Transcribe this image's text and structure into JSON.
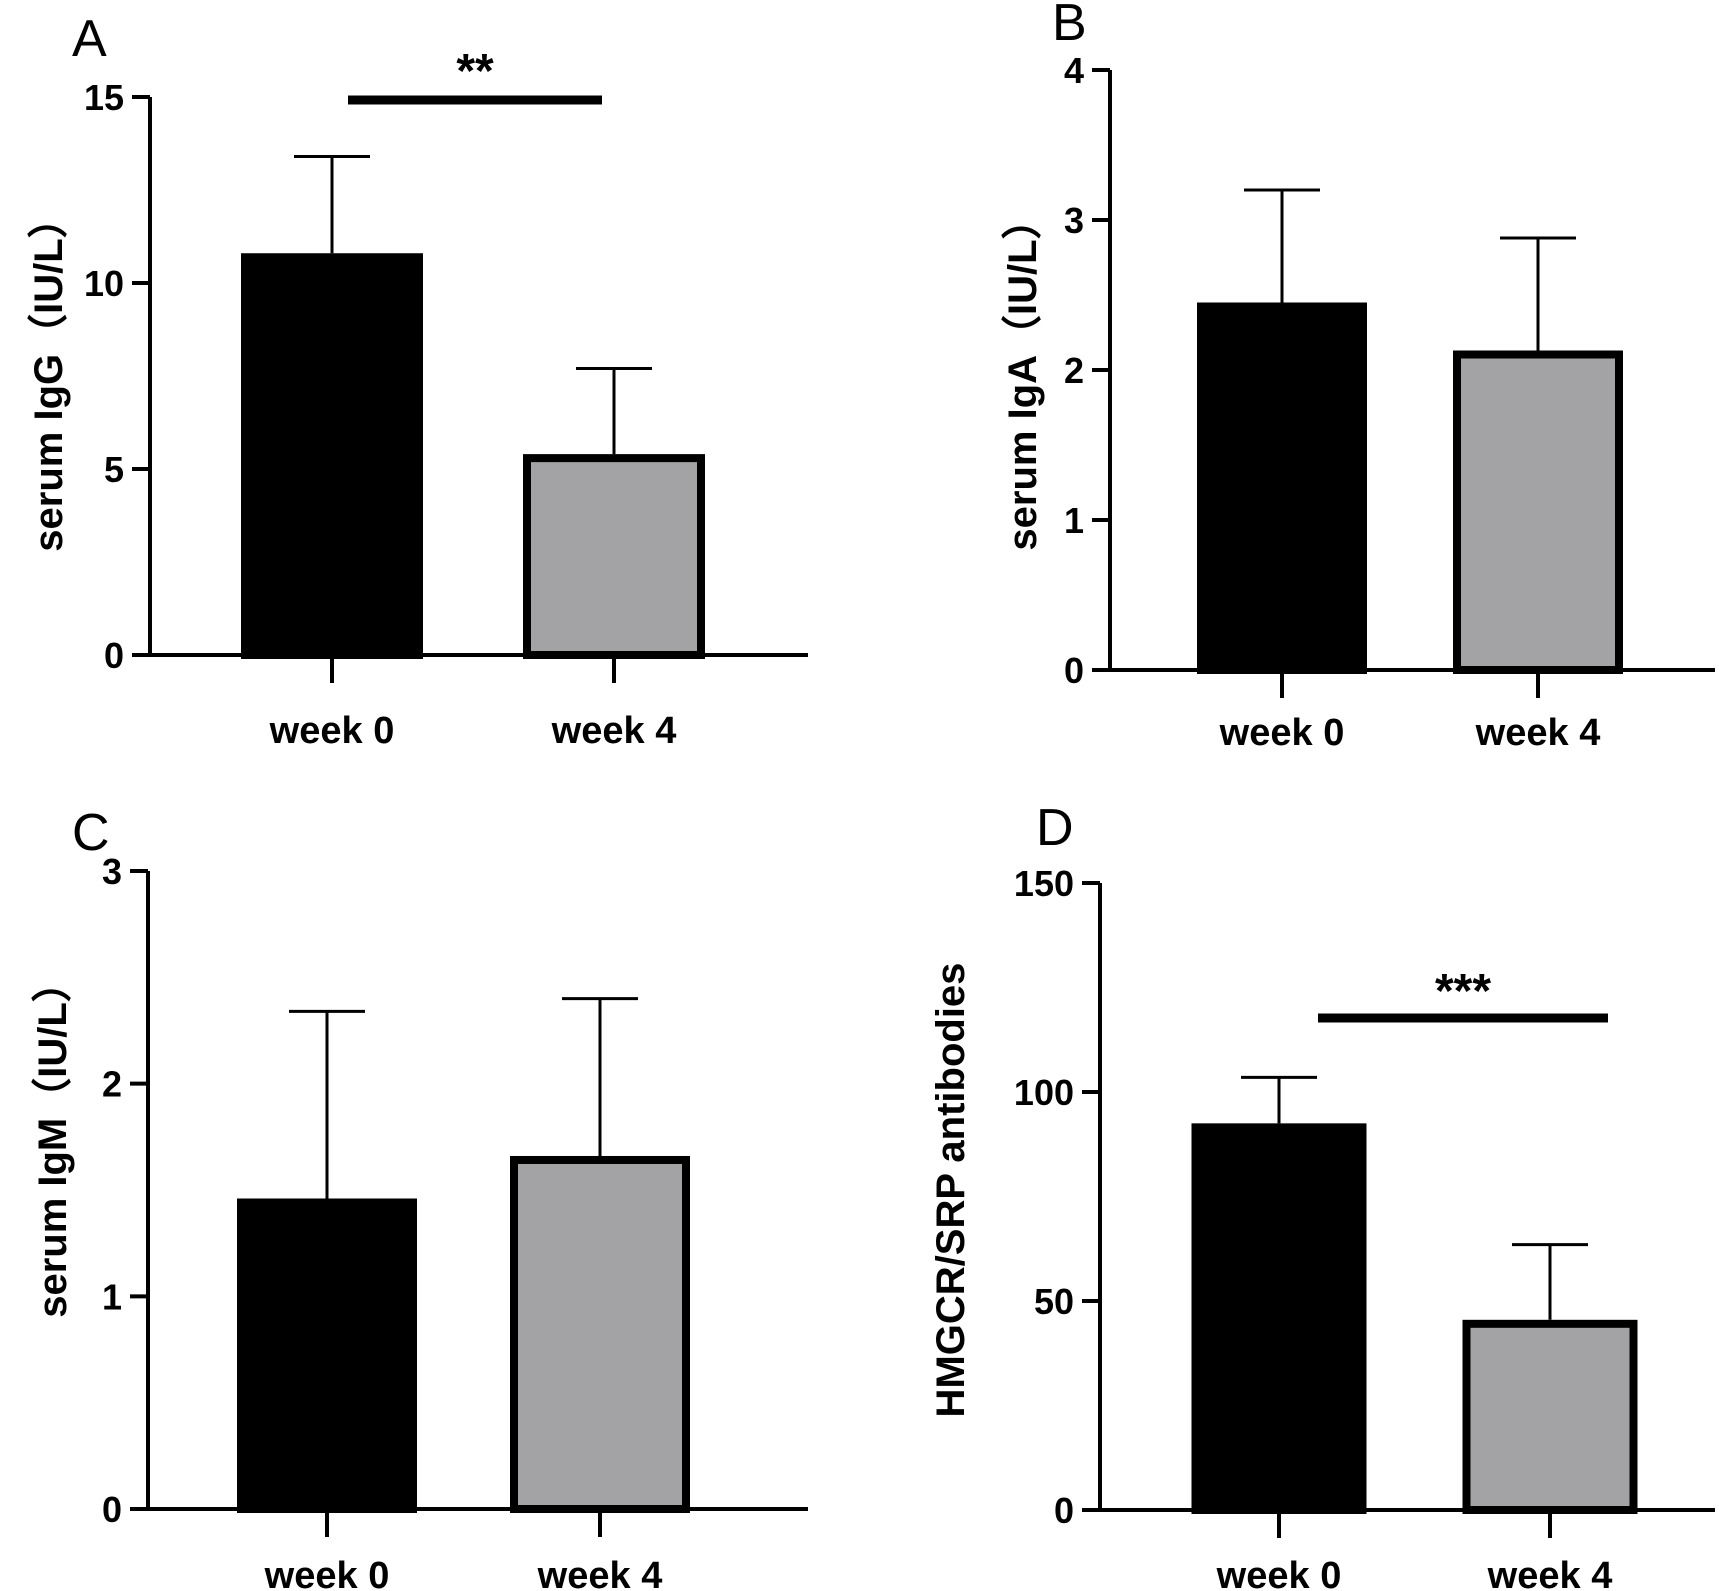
{
  "chart_data": [
    {
      "panel": "A",
      "type": "bar",
      "categories": [
        "week 0",
        "week 4"
      ],
      "values": [
        10.8,
        5.4
      ],
      "error_upper": [
        13.4,
        7.7
      ],
      "ylabel": "serum IgG（IU/L）",
      "ylim": [
        0,
        15
      ],
      "yticks": [
        0,
        5,
        10,
        15
      ],
      "significance": {
        "label": "**"
      },
      "colors": [
        "#000000",
        "#a3a3a6"
      ]
    },
    {
      "panel": "B",
      "type": "bar",
      "categories": [
        "week 0",
        "week 4"
      ],
      "values": [
        2.45,
        2.13
      ],
      "error_upper": [
        3.2,
        2.88
      ],
      "ylabel": "serum IgA（IU/L）",
      "ylim": [
        0,
        4
      ],
      "yticks": [
        0,
        1,
        2,
        3,
        4
      ],
      "significance": null,
      "colors": [
        "#000000",
        "#a3a3a6"
      ]
    },
    {
      "panel": "C",
      "type": "bar",
      "categories": [
        "week 0",
        "week 4"
      ],
      "values": [
        1.46,
        1.66
      ],
      "error_upper": [
        2.34,
        2.4
      ],
      "ylabel": "serum IgM（IU/L）",
      "ylim": [
        0,
        3
      ],
      "yticks": [
        0,
        1,
        2,
        3
      ],
      "significance": null,
      "colors": [
        "#000000",
        "#a3a3a6"
      ]
    },
    {
      "panel": "D",
      "type": "bar",
      "categories": [
        "week 0",
        "week 4"
      ],
      "values": [
        92.5,
        45.5
      ],
      "error_upper": [
        103.5,
        63.5
      ],
      "ylabel": "HMGCR/SRP antibodies",
      "ylim": [
        0,
        150
      ],
      "yticks": [
        0,
        50,
        100,
        150
      ],
      "significance": {
        "label": "***"
      },
      "colors": [
        "#000000",
        "#a3a3a6"
      ]
    }
  ]
}
